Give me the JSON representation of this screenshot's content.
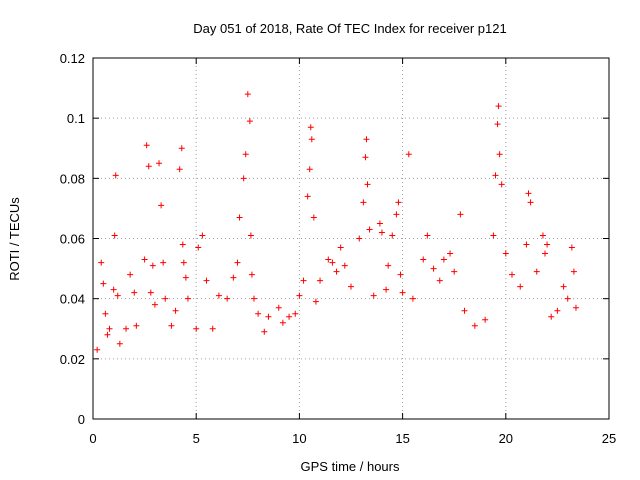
{
  "chart_data": {
    "type": "scatter",
    "title": "Day 051 of 2018, Rate Of TEC Index for receiver p121",
    "xlabel": "GPS time / hours",
    "ylabel": "ROTI / TECUs",
    "xlim": [
      0,
      25
    ],
    "ylim": [
      0,
      0.12
    ],
    "xticks": [
      "0",
      "5",
      "10",
      "15",
      "20",
      "25"
    ],
    "yticks": [
      "0",
      "0.02",
      "0.04",
      "0.06",
      "0.08",
      "0.1",
      "0.12"
    ],
    "grid": true,
    "marker": "+",
    "color": "#ff0000",
    "series": [
      {
        "name": "ROTI",
        "x": [
          0.2,
          0.4,
          0.5,
          0.6,
          0.7,
          0.8,
          1.0,
          1.05,
          1.1,
          1.2,
          1.3,
          1.6,
          1.8,
          2.0,
          2.1,
          2.5,
          2.6,
          2.7,
          2.8,
          2.9,
          3.0,
          3.2,
          3.3,
          3.4,
          3.5,
          3.8,
          4.0,
          4.2,
          4.3,
          4.35,
          4.4,
          4.5,
          4.6,
          5.0,
          5.1,
          5.3,
          5.5,
          5.8,
          6.1,
          6.5,
          6.8,
          7.0,
          7.1,
          7.3,
          7.4,
          7.5,
          7.6,
          7.65,
          7.7,
          7.8,
          8.0,
          8.3,
          8.5,
          9.0,
          9.2,
          9.5,
          9.8,
          10.0,
          10.2,
          10.4,
          10.5,
          10.55,
          10.6,
          10.7,
          10.8,
          11.0,
          11.4,
          11.6,
          11.8,
          12.0,
          12.2,
          12.5,
          12.9,
          13.1,
          13.2,
          13.25,
          13.3,
          13.4,
          13.6,
          13.9,
          14.0,
          14.2,
          14.3,
          14.5,
          14.7,
          14.8,
          14.9,
          15.0,
          15.3,
          15.5,
          16.0,
          16.2,
          16.5,
          16.8,
          17.0,
          17.3,
          17.5,
          17.8,
          18.0,
          18.5,
          19.0,
          19.4,
          19.5,
          19.6,
          19.65,
          19.7,
          19.8,
          20.0,
          20.3,
          20.7,
          21.0,
          21.1,
          21.2,
          21.5,
          21.8,
          21.9,
          22.0,
          22.2,
          22.5,
          22.8,
          23.0,
          23.2,
          23.3,
          23.4
        ],
        "y": [
          0.023,
          0.052,
          0.045,
          0.035,
          0.028,
          0.03,
          0.043,
          0.061,
          0.081,
          0.041,
          0.025,
          0.03,
          0.048,
          0.042,
          0.031,
          0.053,
          0.091,
          0.084,
          0.042,
          0.051,
          0.038,
          0.085,
          0.071,
          0.052,
          0.04,
          0.031,
          0.036,
          0.083,
          0.09,
          0.058,
          0.052,
          0.047,
          0.04,
          0.03,
          0.057,
          0.061,
          0.046,
          0.03,
          0.041,
          0.04,
          0.047,
          0.052,
          0.067,
          0.08,
          0.088,
          0.108,
          0.099,
          0.061,
          0.048,
          0.04,
          0.035,
          0.029,
          0.034,
          0.037,
          0.032,
          0.034,
          0.035,
          0.041,
          0.046,
          0.074,
          0.083,
          0.097,
          0.093,
          0.067,
          0.039,
          0.046,
          0.053,
          0.052,
          0.049,
          0.057,
          0.051,
          0.044,
          0.06,
          0.072,
          0.087,
          0.093,
          0.078,
          0.063,
          0.041,
          0.065,
          0.062,
          0.043,
          0.051,
          0.061,
          0.068,
          0.072,
          0.048,
          0.042,
          0.088,
          0.04,
          0.053,
          0.061,
          0.05,
          0.046,
          0.053,
          0.055,
          0.049,
          0.068,
          0.036,
          0.031,
          0.033,
          0.061,
          0.081,
          0.098,
          0.104,
          0.088,
          0.078,
          0.055,
          0.048,
          0.044,
          0.058,
          0.075,
          0.072,
          0.049,
          0.061,
          0.055,
          0.058,
          0.034,
          0.036,
          0.044,
          0.04,
          0.057,
          0.049,
          0.037
        ]
      }
    ]
  }
}
